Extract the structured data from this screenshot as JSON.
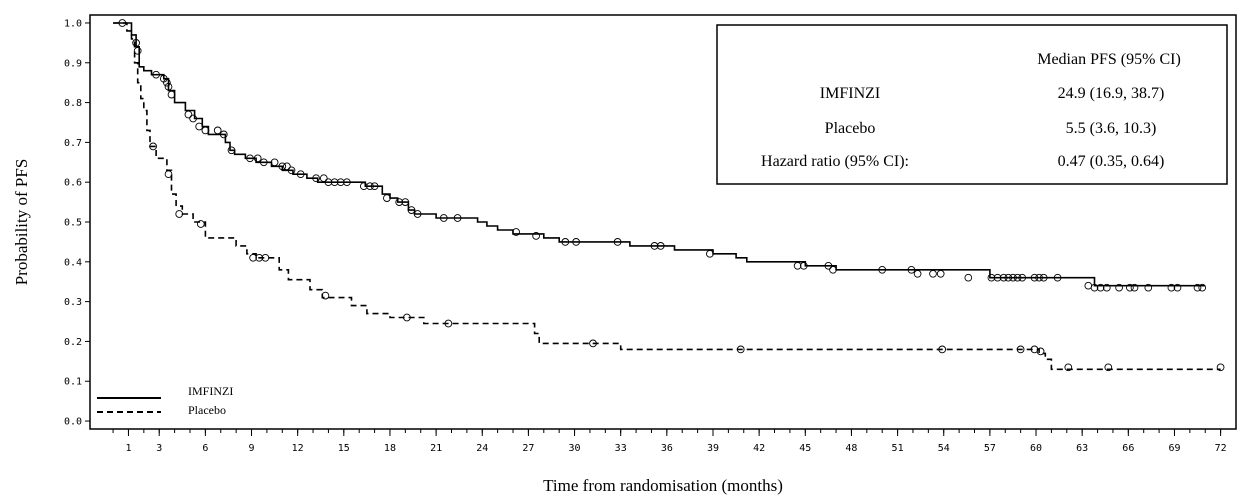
{
  "chart_data": {
    "type": "line",
    "xlabel": "Time from randomisation (months)",
    "ylabel": "Probability of PFS",
    "xlim": [
      -1.5,
      73
    ],
    "ylim": [
      -0.02,
      1.02
    ],
    "x_ticks": [
      1,
      3,
      6,
      9,
      12,
      15,
      18,
      21,
      24,
      27,
      30,
      33,
      36,
      39,
      42,
      45,
      48,
      51,
      54,
      57,
      60,
      63,
      66,
      69,
      72
    ],
    "x_tick_labels": [
      "1",
      "3",
      "6",
      "9",
      "12",
      "15",
      "18",
      "21",
      "24",
      "27",
      "30",
      "33",
      "36",
      "39",
      "42",
      "45",
      "48",
      "51",
      "54",
      "57",
      "60",
      "63",
      "66",
      "69",
      "72"
    ],
    "y_ticks": [
      0.0,
      0.1,
      0.2,
      0.3,
      0.4,
      0.5,
      0.6,
      0.7,
      0.8,
      0.9,
      1.0
    ],
    "y_tick_labels": [
      "0.0",
      "0.1",
      "0.2",
      "0.3",
      "0.4",
      "0.5",
      "0.6",
      "0.7",
      "0.8",
      "0.9",
      "1.0"
    ],
    "legend": {
      "placement": "bottom-left",
      "entries": [
        {
          "label": "IMFINZI",
          "style": "solid"
        },
        {
          "label": "Placebo",
          "style": "dashed"
        }
      ]
    },
    "table": {
      "header": "Median PFS (95% CI)",
      "rows": [
        {
          "label": "IMFINZI",
          "value": "24.9 (16.9, 38.7)"
        },
        {
          "label": "Placebo",
          "value": "5.5 (3.6, 10.3)"
        },
        {
          "label": "Hazard ratio (95% CI):",
          "value": "0.47 (0.35, 0.64)"
        }
      ]
    },
    "series": [
      {
        "name": "IMFINZI",
        "style": "solid",
        "color": "#000000",
        "steps": [
          [
            0,
            1.0
          ],
          [
            1.2,
            0.97
          ],
          [
            1.5,
            0.94
          ],
          [
            1.7,
            0.89
          ],
          [
            2.0,
            0.88
          ],
          [
            2.5,
            0.87
          ],
          [
            3.3,
            0.86
          ],
          [
            3.6,
            0.83
          ],
          [
            4.0,
            0.8
          ],
          [
            4.7,
            0.78
          ],
          [
            5.3,
            0.76
          ],
          [
            5.8,
            0.74
          ],
          [
            6.2,
            0.72
          ],
          [
            7.3,
            0.7
          ],
          [
            7.6,
            0.68
          ],
          [
            7.9,
            0.67
          ],
          [
            8.6,
            0.66
          ],
          [
            9.3,
            0.65
          ],
          [
            10.3,
            0.64
          ],
          [
            11.0,
            0.63
          ],
          [
            11.7,
            0.62
          ],
          [
            12.6,
            0.61
          ],
          [
            13.3,
            0.6
          ],
          [
            16.4,
            0.59
          ],
          [
            17.5,
            0.57
          ],
          [
            18.0,
            0.56
          ],
          [
            18.5,
            0.55
          ],
          [
            19.2,
            0.53
          ],
          [
            19.6,
            0.52
          ],
          [
            21.0,
            0.51
          ],
          [
            23.7,
            0.5
          ],
          [
            24.3,
            0.49
          ],
          [
            25.0,
            0.48
          ],
          [
            26.0,
            0.47
          ],
          [
            28.0,
            0.46
          ],
          [
            29.0,
            0.45
          ],
          [
            33.6,
            0.44
          ],
          [
            36.5,
            0.43
          ],
          [
            39.0,
            0.42
          ],
          [
            40.5,
            0.41
          ],
          [
            41.2,
            0.4
          ],
          [
            45.0,
            0.39
          ],
          [
            47.0,
            0.38
          ],
          [
            57.0,
            0.36
          ],
          [
            63.8,
            0.34
          ],
          [
            71.0,
            0.34
          ]
        ],
        "censored": [
          [
            0.6,
            1.0
          ],
          [
            1.6,
            0.93
          ],
          [
            2.8,
            0.87
          ],
          [
            3.3,
            0.86
          ],
          [
            3.5,
            0.85
          ],
          [
            3.6,
            0.84
          ],
          [
            3.8,
            0.82
          ],
          [
            4.9,
            0.77
          ],
          [
            5.2,
            0.76
          ],
          [
            5.6,
            0.74
          ],
          [
            6.0,
            0.73
          ],
          [
            6.8,
            0.73
          ],
          [
            7.2,
            0.72
          ],
          [
            7.7,
            0.68
          ],
          [
            8.9,
            0.66
          ],
          [
            9.4,
            0.66
          ],
          [
            9.8,
            0.65
          ],
          [
            10.5,
            0.65
          ],
          [
            11.0,
            0.64
          ],
          [
            11.3,
            0.64
          ],
          [
            11.6,
            0.63
          ],
          [
            12.2,
            0.62
          ],
          [
            13.2,
            0.61
          ],
          [
            13.7,
            0.61
          ],
          [
            14.0,
            0.6
          ],
          [
            14.4,
            0.6
          ],
          [
            14.8,
            0.6
          ],
          [
            15.2,
            0.6
          ],
          [
            16.3,
            0.59
          ],
          [
            16.7,
            0.59
          ],
          [
            17.0,
            0.59
          ],
          [
            17.8,
            0.56
          ],
          [
            18.6,
            0.55
          ],
          [
            19.0,
            0.55
          ],
          [
            19.4,
            0.53
          ],
          [
            19.8,
            0.52
          ],
          [
            21.5,
            0.51
          ],
          [
            22.4,
            0.51
          ],
          [
            26.2,
            0.475
          ],
          [
            27.5,
            0.465
          ],
          [
            29.4,
            0.45
          ],
          [
            30.1,
            0.45
          ],
          [
            32.8,
            0.45
          ],
          [
            35.2,
            0.44
          ],
          [
            35.6,
            0.44
          ],
          [
            38.8,
            0.42
          ],
          [
            44.5,
            0.39
          ],
          [
            44.9,
            0.39
          ],
          [
            46.5,
            0.39
          ],
          [
            46.8,
            0.38
          ],
          [
            50.0,
            0.38
          ],
          [
            51.9,
            0.38
          ],
          [
            52.3,
            0.37
          ],
          [
            53.3,
            0.37
          ],
          [
            53.8,
            0.37
          ],
          [
            55.6,
            0.36
          ],
          [
            57.1,
            0.36
          ],
          [
            57.5,
            0.36
          ],
          [
            57.9,
            0.36
          ],
          [
            58.2,
            0.36
          ],
          [
            58.5,
            0.36
          ],
          [
            58.8,
            0.36
          ],
          [
            59.1,
            0.36
          ],
          [
            59.9,
            0.36
          ],
          [
            60.2,
            0.36
          ],
          [
            60.5,
            0.36
          ],
          [
            61.4,
            0.36
          ],
          [
            63.4,
            0.34
          ],
          [
            63.8,
            0.335
          ],
          [
            64.2,
            0.335
          ],
          [
            64.6,
            0.335
          ],
          [
            65.4,
            0.335
          ],
          [
            66.1,
            0.335
          ],
          [
            66.4,
            0.335
          ],
          [
            67.3,
            0.335
          ],
          [
            68.8,
            0.335
          ],
          [
            69.2,
            0.335
          ],
          [
            70.5,
            0.335
          ],
          [
            70.8,
            0.335
          ]
        ]
      },
      {
        "name": "Placebo",
        "style": "dashed",
        "color": "#000000",
        "steps": [
          [
            0,
            1.0
          ],
          [
            0.9,
            0.98
          ],
          [
            1.2,
            0.96
          ],
          [
            1.4,
            0.9
          ],
          [
            1.6,
            0.85
          ],
          [
            1.8,
            0.81
          ],
          [
            2.0,
            0.78
          ],
          [
            2.2,
            0.73
          ],
          [
            2.4,
            0.69
          ],
          [
            2.8,
            0.66
          ],
          [
            3.5,
            0.63
          ],
          [
            3.8,
            0.57
          ],
          [
            4.1,
            0.54
          ],
          [
            4.5,
            0.52
          ],
          [
            5.2,
            0.5
          ],
          [
            6.0,
            0.46
          ],
          [
            8.0,
            0.44
          ],
          [
            8.7,
            0.42
          ],
          [
            9.3,
            0.41
          ],
          [
            10.8,
            0.38
          ],
          [
            11.4,
            0.355
          ],
          [
            12.8,
            0.33
          ],
          [
            13.6,
            0.31
          ],
          [
            15.5,
            0.29
          ],
          [
            16.5,
            0.27
          ],
          [
            18.0,
            0.26
          ],
          [
            20.2,
            0.245
          ],
          [
            27.4,
            0.22
          ],
          [
            27.7,
            0.195
          ],
          [
            33.0,
            0.18
          ],
          [
            60.2,
            0.17
          ],
          [
            60.6,
            0.155
          ],
          [
            61.0,
            0.13
          ],
          [
            72.0,
            0.13
          ]
        ],
        "censored": [
          [
            1.5,
            0.95
          ],
          [
            2.6,
            0.69
          ],
          [
            3.6,
            0.62
          ],
          [
            4.3,
            0.52
          ],
          [
            5.7,
            0.495
          ],
          [
            9.1,
            0.41
          ],
          [
            9.5,
            0.41
          ],
          [
            9.9,
            0.41
          ],
          [
            13.8,
            0.315
          ],
          [
            19.1,
            0.26
          ],
          [
            21.8,
            0.245
          ],
          [
            31.2,
            0.195
          ],
          [
            40.8,
            0.18
          ],
          [
            53.9,
            0.18
          ],
          [
            59.0,
            0.18
          ],
          [
            59.9,
            0.18
          ],
          [
            60.3,
            0.175
          ],
          [
            62.1,
            0.135
          ],
          [
            64.7,
            0.135
          ],
          [
            72.0,
            0.135
          ]
        ]
      }
    ]
  }
}
